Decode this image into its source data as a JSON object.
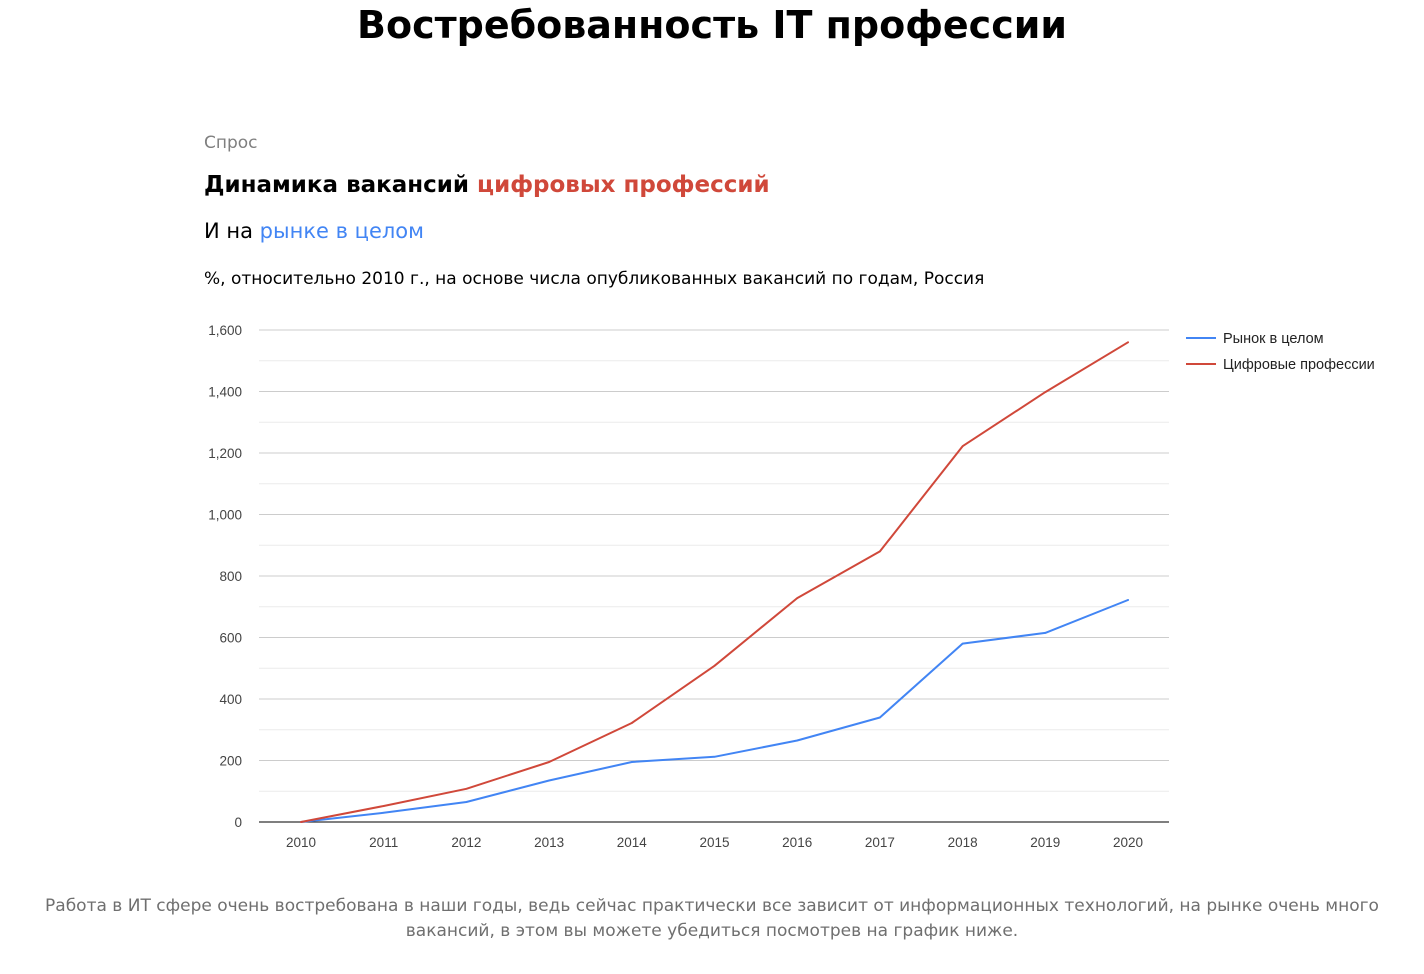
{
  "page": {
    "title": "Востребованность IT профессии",
    "kicker": "Спрос",
    "headline_part1": "Динамика вакансий ",
    "headline_part2": "цифровых профессий",
    "subheadline_part1": "И на ",
    "subheadline_part2": "рынке в целом",
    "note": "%, относительно 2010 г., на основе числа опубликованных вакансий по годам, Россия",
    "footer": "Работа в ИТ сфере очень востребована в наши годы, ведь сейчас практически все зависит от информационных технологий, на рынке очень много вакансий, в этом вы можете убедиться посмотрев на график ниже."
  },
  "colors": {
    "red": "#d0483a",
    "blue": "#4285f4"
  },
  "chart_data": {
    "type": "line",
    "title": "",
    "xlabel": "",
    "ylabel": "",
    "x": [
      "2010",
      "2011",
      "2012",
      "2013",
      "2014",
      "2015",
      "2016",
      "2017",
      "2018",
      "2019",
      "2020"
    ],
    "ylim": [
      0,
      1600
    ],
    "yticks": [
      0,
      200,
      400,
      600,
      800,
      1000,
      1200,
      1400,
      1600
    ],
    "ytick_labels": [
      "0",
      "200",
      "400",
      "600",
      "800",
      "1,000",
      "1,200",
      "1,400",
      "1,600"
    ],
    "grid": true,
    "legend_position": "right",
    "series": [
      {
        "name": "Рынок в целом",
        "color": "#4285f4",
        "values": [
          0,
          30,
          65,
          135,
          195,
          212,
          265,
          340,
          580,
          615,
          722
        ]
      },
      {
        "name": "Цифровые профессии",
        "color": "#d0483a",
        "values": [
          0,
          52,
          108,
          195,
          322,
          508,
          728,
          880,
          1222,
          1398,
          1560
        ]
      }
    ]
  }
}
